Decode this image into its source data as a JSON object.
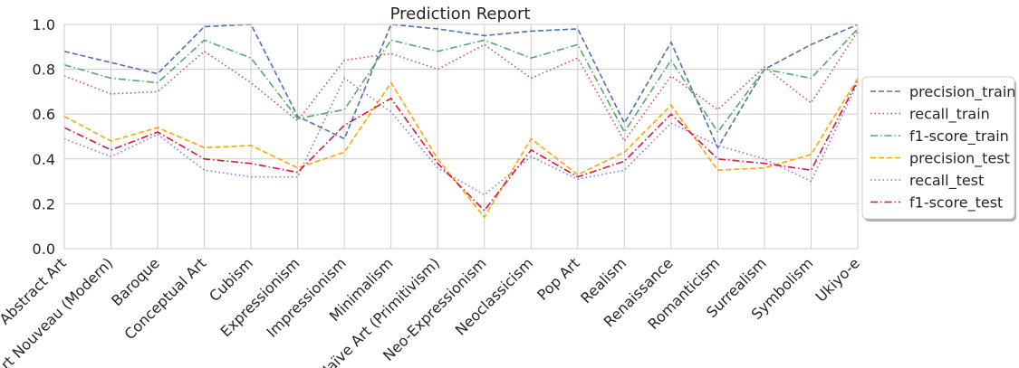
{
  "chart_data": {
    "type": "line",
    "title": "Prediction Report",
    "xlabel": "",
    "ylabel": "",
    "ylim": [
      0.0,
      1.0
    ],
    "yticks": [
      "0.0",
      "0.2",
      "0.4",
      "0.6",
      "0.8",
      "1.0"
    ],
    "grid": true,
    "legend_position": "right",
    "categories": [
      "Abstract Art",
      "Art Nouveau (Modern)",
      "Baroque",
      "Conceptual Art",
      "Cubism",
      "Expressionism",
      "Impressionism",
      "Minimalism",
      "Naïve Art (Primitivism)",
      "Neo-Expressionism",
      "Neoclassicism",
      "Pop Art",
      "Realism",
      "Renaissance",
      "Romanticism",
      "Surrealism",
      "Symbolism",
      "Ukiyo-e"
    ],
    "series": [
      {
        "name": "precision_train",
        "color": "#4c72b0",
        "dash": "dashed",
        "values": [
          0.88,
          0.83,
          0.78,
          0.99,
          1.0,
          0.59,
          0.49,
          1.0,
          0.98,
          0.95,
          0.97,
          0.98,
          0.56,
          0.92,
          0.45,
          0.8,
          0.91,
          1.0
        ]
      },
      {
        "name": "recall_train",
        "color": "#c44e52",
        "dash": "dotted",
        "values": [
          0.77,
          0.69,
          0.7,
          0.88,
          0.74,
          0.57,
          0.84,
          0.87,
          0.8,
          0.91,
          0.76,
          0.85,
          0.48,
          0.77,
          0.62,
          0.81,
          0.65,
          0.97
        ]
      },
      {
        "name": "f1-score_train",
        "color": "#55a868",
        "dash": "dashdot",
        "values": [
          0.82,
          0.76,
          0.74,
          0.93,
          0.85,
          0.58,
          0.62,
          0.93,
          0.88,
          0.93,
          0.85,
          0.91,
          0.52,
          0.84,
          0.52,
          0.8,
          0.76,
          0.98
        ]
      },
      {
        "name": "precision_test",
        "color": "#ffa500",
        "dash": "dashed",
        "values": [
          0.59,
          0.48,
          0.54,
          0.45,
          0.46,
          0.36,
          0.43,
          0.74,
          0.4,
          0.14,
          0.49,
          0.33,
          0.43,
          0.64,
          0.35,
          0.36,
          0.42,
          0.76
        ]
      },
      {
        "name": "recall_test",
        "color": "#9370db",
        "dash": "dotted",
        "values": [
          0.49,
          0.41,
          0.51,
          0.35,
          0.32,
          0.32,
          0.76,
          0.61,
          0.36,
          0.24,
          0.41,
          0.31,
          0.35,
          0.56,
          0.46,
          0.4,
          0.3,
          0.74
        ]
      },
      {
        "name": "f1-score_test",
        "color": "#dc143c",
        "dash": "dashdot",
        "values": [
          0.54,
          0.44,
          0.52,
          0.4,
          0.38,
          0.34,
          0.55,
          0.67,
          0.38,
          0.17,
          0.44,
          0.32,
          0.39,
          0.6,
          0.4,
          0.38,
          0.35,
          0.75
        ]
      }
    ]
  }
}
